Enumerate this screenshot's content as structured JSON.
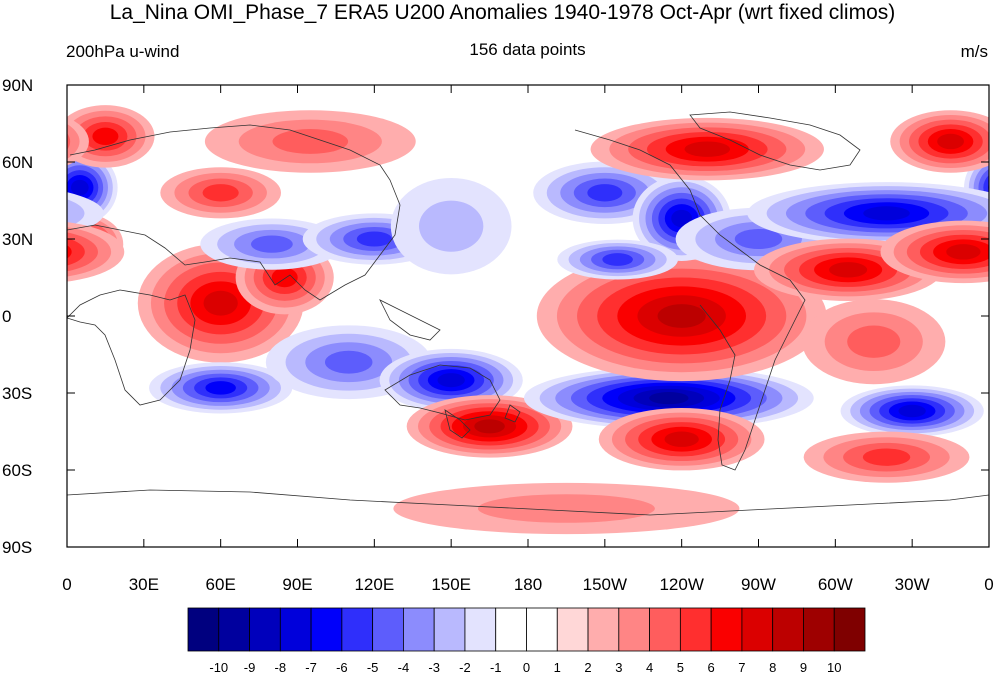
{
  "header": {
    "title": "La_Nina OMI_Phase_7 ERA5 U200 Anomalies 1940-1978 Oct-Apr (wrt fixed climos)",
    "left_label": "200hPa u-wind",
    "center_label": "156 data points",
    "right_label": "m/s"
  },
  "axes": {
    "y_ticks": [
      "90N",
      "60N",
      "30N",
      "0",
      "30S",
      "60S",
      "90S"
    ],
    "x_ticks": [
      "0",
      "30E",
      "60E",
      "90E",
      "120E",
      "150E",
      "180",
      "150W",
      "120W",
      "90W",
      "60W",
      "30W",
      "0"
    ]
  },
  "colorbar": {
    "labels": [
      "-10",
      "-9",
      "-8",
      "-7",
      "-6",
      "-5",
      "-4",
      "-3",
      "-2",
      "-1",
      "0",
      "1",
      "2",
      "3",
      "4",
      "5",
      "6",
      "7",
      "8",
      "9",
      "10"
    ],
    "colors": [
      "#00007f",
      "#00009e",
      "#0000bc",
      "#0000db",
      "#0000fa",
      "#2f2ffb",
      "#5d5dfc",
      "#8c8cfd",
      "#b9b9fe",
      "#e3e3fe",
      "#ffffff",
      "#ffffff",
      "#ffd7d7",
      "#ffadad",
      "#ff8585",
      "#ff5d5d",
      "#ff2f2f",
      "#fa0000",
      "#db0000",
      "#bc0000",
      "#9e0000",
      "#7f0000"
    ]
  },
  "anomaly_blobs": [
    {
      "lon": 5,
      "lat": 50,
      "value": -7,
      "sx": 6,
      "sy": 6
    },
    {
      "lon": 5,
      "lat": 28,
      "value": 7,
      "sx": 7,
      "sy": 5
    },
    {
      "lon": 15,
      "lat": 70,
      "value": 5,
      "sx": 8,
      "sy": 5
    },
    {
      "lon": 60,
      "lat": 48,
      "value": 4,
      "sx": 10,
      "sy": 4
    },
    {
      "lon": 60,
      "lat": 5,
      "value": 6,
      "sx": 14,
      "sy": 10
    },
    {
      "lon": 85,
      "lat": 15,
      "value": 5,
      "sx": 8,
      "sy": 6
    },
    {
      "lon": 80,
      "lat": 28,
      "value": -4,
      "sx": 12,
      "sy": 4
    },
    {
      "lon": 120,
      "lat": 30,
      "value": -5,
      "sx": 12,
      "sy": 4
    },
    {
      "lon": 95,
      "lat": 68,
      "value": 3,
      "sx": 18,
      "sy": 5
    },
    {
      "lon": 60,
      "lat": -28,
      "value": -6,
      "sx": 12,
      "sy": 4
    },
    {
      "lon": 110,
      "lat": -18,
      "value": -4,
      "sx": 14,
      "sy": 6
    },
    {
      "lon": 150,
      "lat": -25,
      "value": -7,
      "sx": 12,
      "sy": 5
    },
    {
      "lon": 165,
      "lat": -43,
      "value": 7,
      "sx": 14,
      "sy": 5
    },
    {
      "lon": 235,
      "lat": -32,
      "value": -9,
      "sx": 25,
      "sy": 5
    },
    {
      "lon": 240,
      "lat": 0,
      "value": 7,
      "sx": 25,
      "sy": 11
    },
    {
      "lon": 240,
      "lat": -48,
      "value": 6,
      "sx": 14,
      "sy": 5
    },
    {
      "lon": 210,
      "lat": 48,
      "value": -5,
      "sx": 12,
      "sy": 5
    },
    {
      "lon": 240,
      "lat": 38,
      "value": -7,
      "sx": 8,
      "sy": 7
    },
    {
      "lon": 215,
      "lat": 22,
      "value": -5,
      "sx": 10,
      "sy": 3
    },
    {
      "lon": 250,
      "lat": 65,
      "value": 6,
      "sx": 20,
      "sy": 5
    },
    {
      "lon": 270,
      "lat": 30,
      "value": -4,
      "sx": 14,
      "sy": 5
    },
    {
      "lon": 320,
      "lat": 40,
      "value": -7,
      "sx": 24,
      "sy": 5
    },
    {
      "lon": 305,
      "lat": 18,
      "value": 6,
      "sx": 16,
      "sy": 5
    },
    {
      "lon": 350,
      "lat": 25,
      "value": 6,
      "sx": 14,
      "sy": 5
    },
    {
      "lon": 345,
      "lat": 68,
      "value": 6,
      "sx": 10,
      "sy": 5
    },
    {
      "lon": 330,
      "lat": -37,
      "value": -7,
      "sx": 12,
      "sy": 4
    },
    {
      "lon": 320,
      "lat": -55,
      "value": 4,
      "sx": 14,
      "sy": 4
    },
    {
      "lon": 315,
      "lat": -10,
      "value": 3,
      "sx": 12,
      "sy": 7
    },
    {
      "lon": 195,
      "lat": -75,
      "value": 2,
      "sx": 30,
      "sy": 4
    },
    {
      "lon": 150,
      "lat": 35,
      "value": -2,
      "sx": 10,
      "sy": 8
    }
  ]
}
